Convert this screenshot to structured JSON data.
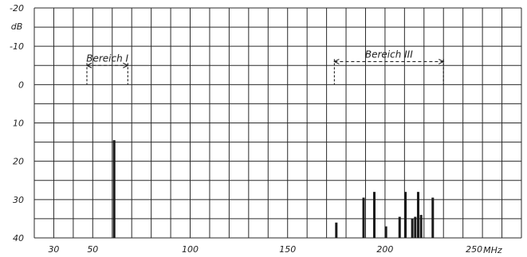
{
  "chart_data": {
    "type": "bar",
    "title": "",
    "xlabel": "MHz",
    "ylabel": "dB",
    "xlim": [
      20,
      270
    ],
    "ylim": [
      -20,
      40
    ],
    "y_inverted": true,
    "grid": true,
    "x_ticks": [
      {
        "value": 30,
        "label": "30"
      },
      {
        "value": 50,
        "label": "50"
      },
      {
        "value": 100,
        "label": "100"
      },
      {
        "value": 150,
        "label": "150"
      },
      {
        "value": 200,
        "label": "200"
      },
      {
        "value": 250,
        "label": "250"
      }
    ],
    "x_unit": "MHz",
    "y_ticks": [
      {
        "value": -20,
        "label": "-20"
      },
      {
        "value": -10,
        "label": "-10"
      },
      {
        "value": 0,
        "label": "0"
      },
      {
        "value": 10,
        "label": "10"
      },
      {
        "value": 20,
        "label": "20"
      },
      {
        "value": 30,
        "label": "30"
      },
      {
        "value": 40,
        "label": "40"
      }
    ],
    "y_unit": "dB",
    "ranges": [
      {
        "label": "Bereich I",
        "start": 47,
        "end": 68,
        "level": -5
      },
      {
        "label": "Bereich III",
        "start": 174,
        "end": 230,
        "level": -6
      }
    ],
    "bars": [
      {
        "x": 61,
        "value": 14.5
      },
      {
        "x": 175,
        "value": 36
      },
      {
        "x": 189,
        "value": 29.5
      },
      {
        "x": 194.5,
        "value": 28
      },
      {
        "x": 200.5,
        "value": 37
      },
      {
        "x": 207.5,
        "value": 34.5
      },
      {
        "x": 210.5,
        "value": 28
      },
      {
        "x": 214,
        "value": 35
      },
      {
        "x": 215.5,
        "value": 34.5
      },
      {
        "x": 217,
        "value": 28
      },
      {
        "x": 218.5,
        "value": 34
      },
      {
        "x": 224.5,
        "value": 29.5
      }
    ]
  }
}
